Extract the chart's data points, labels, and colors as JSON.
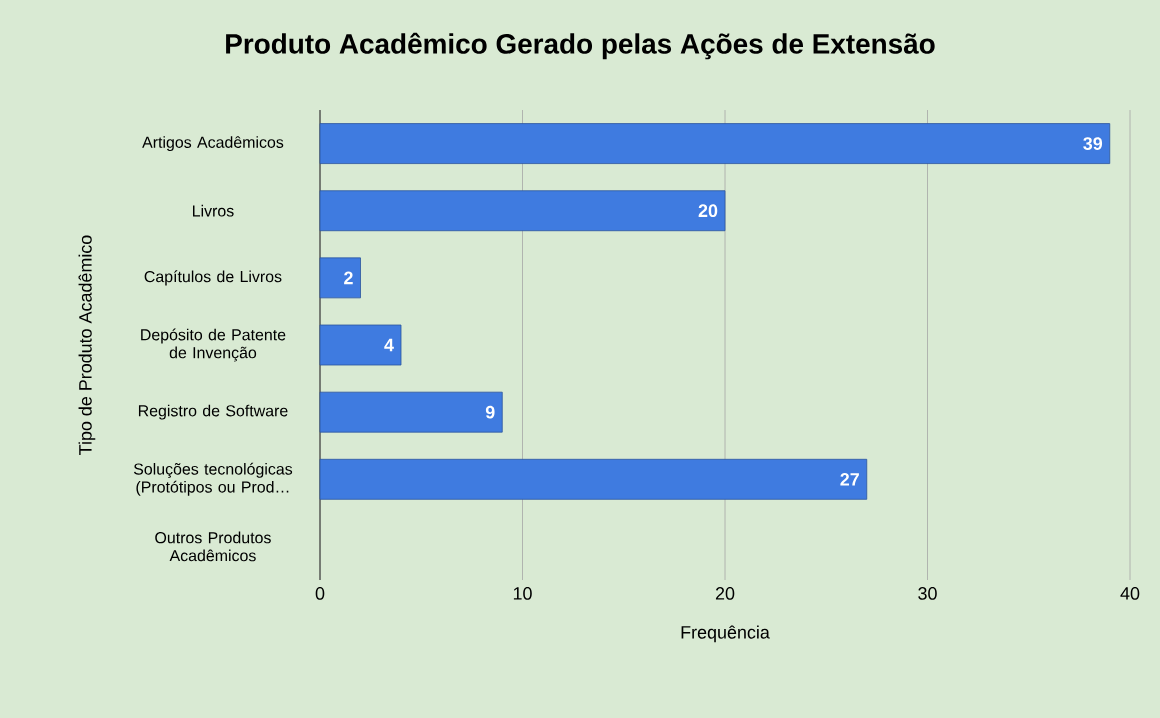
{
  "chart_data": {
    "type": "bar",
    "orientation": "horizontal",
    "title": "Produto Acadêmico Gerado pelas Ações de Extensão",
    "xlabel": "Frequência",
    "ylabel": "Tipo de Produto Acadêmico",
    "categories": [
      "Artigos Acadêmicos",
      "Livros",
      "Capítulos de Livros",
      "Depósito de Patente de Invenção",
      "Registro de Software",
      "Soluções tecnológicas (Protótipos ou Prod…",
      "Outros Produtos Acadêmicos"
    ],
    "values": [
      39,
      20,
      2,
      4,
      9,
      27,
      null
    ],
    "color": "#3f7be0",
    "xlim": [
      0,
      40
    ],
    "xticks": [
      0,
      10,
      20,
      30,
      40
    ],
    "grid": "x",
    "data_labels": true
  }
}
